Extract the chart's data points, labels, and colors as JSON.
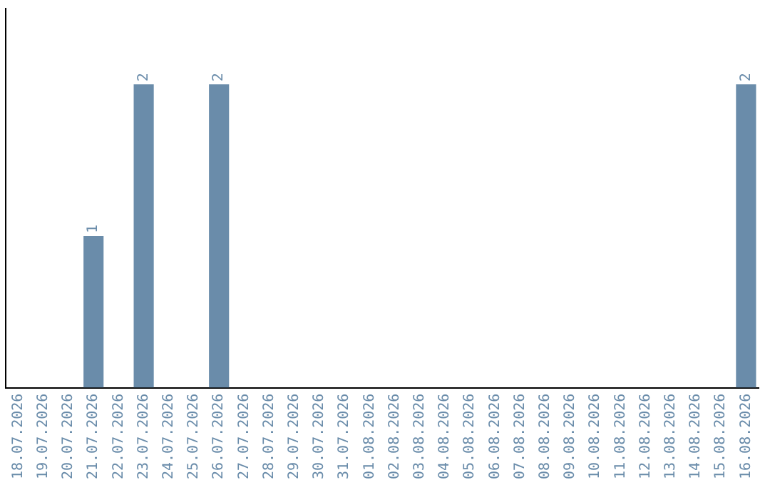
{
  "chart_data": {
    "type": "bar",
    "categories": [
      "18.07.2026",
      "19.07.2026",
      "20.07.2026",
      "21.07.2026",
      "22.07.2026",
      "23.07.2026",
      "24.07.2026",
      "25.07.2026",
      "26.07.2026",
      "27.07.2026",
      "28.07.2026",
      "29.07.2026",
      "30.07.2026",
      "31.07.2026",
      "01.08.2026",
      "02.08.2026",
      "03.08.2026",
      "04.08.2026",
      "05.08.2026",
      "06.08.2026",
      "07.08.2026",
      "08.08.2026",
      "09.08.2026",
      "10.08.2026",
      "11.08.2026",
      "12.08.2026",
      "13.08.2026",
      "14.08.2026",
      "15.08.2026",
      "16.08.2026"
    ],
    "values": [
      0,
      0,
      0,
      1,
      0,
      2,
      0,
      0,
      2,
      0,
      0,
      0,
      0,
      0,
      0,
      0,
      0,
      0,
      0,
      0,
      0,
      0,
      0,
      0,
      0,
      0,
      0,
      0,
      0,
      2
    ],
    "value_labels": [
      null,
      null,
      null,
      "1",
      null,
      "2",
      null,
      null,
      "2",
      null,
      null,
      null,
      null,
      null,
      null,
      null,
      null,
      null,
      null,
      null,
      null,
      null,
      null,
      null,
      null,
      null,
      null,
      null,
      null,
      "2"
    ],
    "color": "#6a8caa",
    "grid": false,
    "legend": false,
    "tick_labels": "x"
  }
}
